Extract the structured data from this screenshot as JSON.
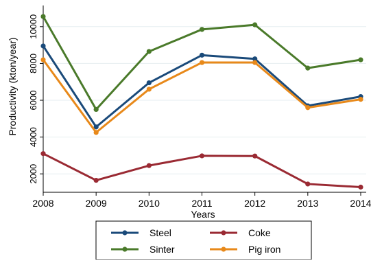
{
  "chart_data": {
    "type": "line",
    "x": [
      2008,
      2009,
      2010,
      2011,
      2012,
      2013,
      2014
    ],
    "xlabel": "Years",
    "ylabel": "Productivity (kton/year)",
    "xticks": [
      "2008",
      "2009",
      "2010",
      "2011",
      "2012",
      "2013",
      "2014"
    ],
    "yticks": [
      "2000",
      "4000",
      "6000",
      "8000",
      "10000"
    ],
    "ytick_values": [
      2000,
      4000,
      6000,
      8000,
      10000
    ],
    "xlim": [
      2008,
      2014
    ],
    "ylim": [
      1000,
      11000
    ],
    "grid": true,
    "legend_position": "bottom",
    "series": [
      {
        "name": "Steel",
        "color": "#1a4a7a",
        "values": [
          8950,
          4550,
          6950,
          8450,
          8250,
          5700,
          6200
        ]
      },
      {
        "name": "Coke",
        "color": "#9a2a33",
        "values": [
          3100,
          1650,
          2450,
          2980,
          2970,
          1450,
          1280
        ]
      },
      {
        "name": "Sinter",
        "color": "#4a7a2a",
        "values": [
          10550,
          5500,
          8650,
          9850,
          10100,
          7750,
          8200
        ]
      },
      {
        "name": "Pig iron",
        "color": "#e8891a",
        "values": [
          8200,
          4250,
          6600,
          8050,
          8050,
          5600,
          6050
        ]
      }
    ]
  }
}
